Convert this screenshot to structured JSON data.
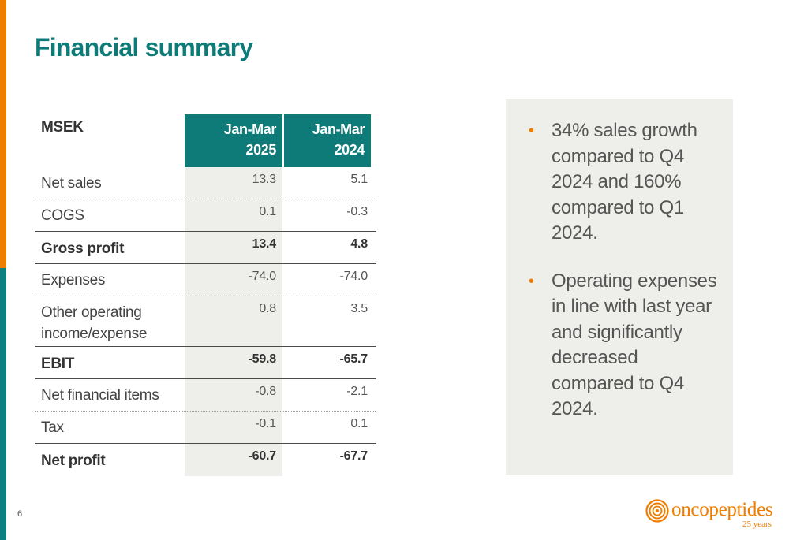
{
  "slide": {
    "title": "Financial summary",
    "page_number": "6"
  },
  "table": {
    "unit_label": "MSEK",
    "columns": [
      {
        "line1": "Jan-Mar",
        "line2": "2025"
      },
      {
        "line1": "Jan-Mar",
        "line2": "2024"
      }
    ],
    "rows": [
      {
        "label": "Net sales",
        "v1": "13.3",
        "v2": "5.1"
      },
      {
        "label": "COGS",
        "v1": "0.1",
        "v2": "-0.3"
      },
      {
        "label": "Gross profit",
        "v1": "13.4",
        "v2": "4.8"
      },
      {
        "label": "Expenses",
        "v1": "-74.0",
        "v2": "-74.0"
      },
      {
        "label": "Other operating income/expense",
        "v1": "0.8",
        "v2": "3.5"
      },
      {
        "label": "EBIT",
        "v1": "-59.8",
        "v2": "-65.7"
      },
      {
        "label": "Net financial items",
        "v1": "-0.8",
        "v2": "-2.1"
      },
      {
        "label": "Tax",
        "v1": "-0.1",
        "v2": "0.1"
      },
      {
        "label": "Net profit",
        "v1": "-60.7",
        "v2": "-67.7"
      }
    ]
  },
  "highlights": {
    "bullets": [
      "34% sales growth compared to Q4 2024 and 160% compared to Q1 2024.",
      "Operating expenses in line with last year and significantly decreased compared to Q4 2024."
    ]
  },
  "logo": {
    "name": "oncopeptides",
    "tagline": "25 years"
  },
  "colors": {
    "brand_teal": "#0e7b79",
    "brand_orange": "#ef7d00",
    "panel_gray": "#eeeeea"
  }
}
